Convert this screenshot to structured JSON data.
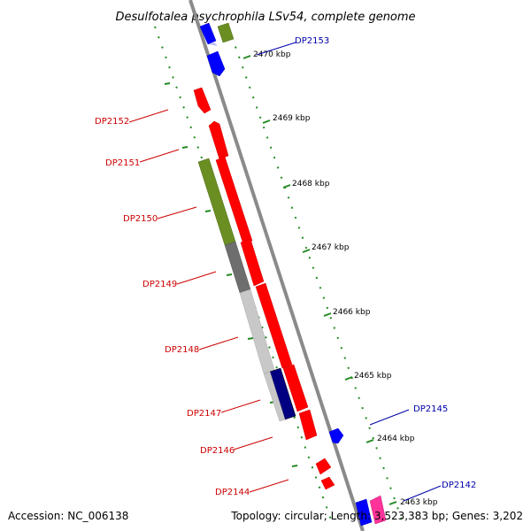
{
  "title": "Desulfotalea psychrophila LSv54, complete genome",
  "accession_text": "Accession: NC_006138",
  "summary_text": "Topology: circular; Length: 3,523,383 bp; Genes: 3,202",
  "kbp_ticks": [
    "2470 kbp",
    "2469 kbp",
    "2468 kbp",
    "2467 kbp",
    "2466 kbp",
    "2465 kbp",
    "2464 kbp",
    "2463 kbp"
  ],
  "gene_labels": {
    "DP2153": "DP2153",
    "DP2152": "DP2152",
    "DP2151": "DP2151",
    "DP2150": "DP2150",
    "DP2149": "DP2149",
    "DP2148": "DP2148",
    "DP2147": "DP2147",
    "DP2146": "DP2146",
    "DP2145": "DP2145",
    "DP2144": "DP2144",
    "DP2142": "DP2142"
  },
  "colors": {
    "reverse_strand_label": "#cc0000",
    "forward_strand_label": "#0000aa",
    "red_gene": "#ff0000",
    "blue_gene": "#0000ff",
    "olive_gene": "#6b8e23",
    "dark_gray_gene": "#6e6e6e",
    "light_gray_gene": "#c8c8c8",
    "navy_gene": "#000080",
    "pink_gene": "#ff3399",
    "backbone": "#808080",
    "tick_green": "#228b22"
  }
}
